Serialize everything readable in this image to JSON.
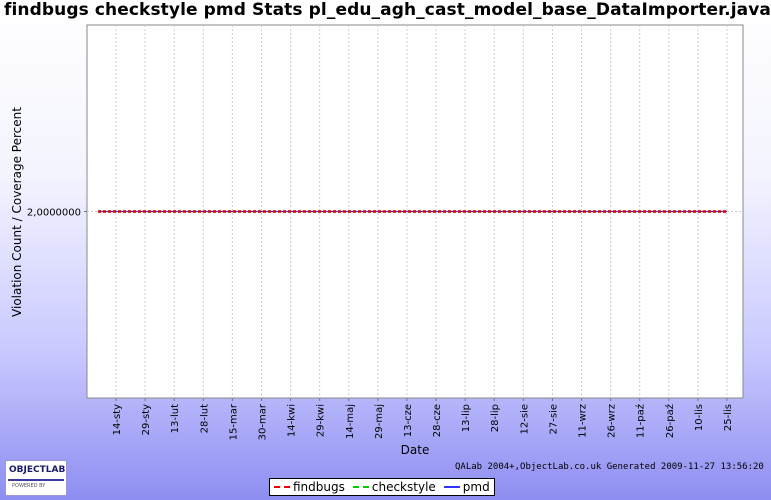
{
  "chart_data": {
    "type": "line",
    "title": "findbugs checkstyle pmd  Stats pl_edu_agh_cast_model_base_DataImporter.java",
    "xlabel": "Date",
    "ylabel": "Violation Count / Coverage Percent",
    "categories": [
      "14-sty",
      "29-sty",
      "13-lut",
      "28-lut",
      "15-mar",
      "30-mar",
      "14-kwi",
      "29-kwi",
      "14-maj",
      "29-maj",
      "13-cze",
      "28-cze",
      "13-lip",
      "28-lip",
      "12-sie",
      "27-sie",
      "11-wrz",
      "26-wrz",
      "11-paź",
      "26-paź",
      "10-lis",
      "25-lis"
    ],
    "y_ticks": [
      "2,0000000"
    ],
    "ylim": [
      1,
      3
    ],
    "grid": true,
    "legend": "bottom",
    "series": [
      {
        "name": "findbugs",
        "color": "#ee0000",
        "style": "dashed",
        "values": [
          2,
          2,
          2,
          2,
          2,
          2,
          2,
          2,
          2,
          2,
          2,
          2,
          2,
          2,
          2,
          2,
          2,
          2,
          2,
          2,
          2,
          2
        ]
      },
      {
        "name": "checkstyle",
        "color": "#00cc00",
        "style": "dashed",
        "values": [
          2,
          2,
          2,
          2,
          2,
          2,
          2,
          2,
          2,
          2,
          2,
          2,
          2,
          2,
          2,
          2,
          2,
          2,
          2,
          2,
          2,
          2
        ]
      },
      {
        "name": "pmd",
        "color": "#3333ff",
        "style": "solid",
        "values": [
          2,
          2,
          2,
          2,
          2,
          2,
          2,
          2,
          2,
          2,
          2,
          2,
          2,
          2,
          2,
          2,
          2,
          2,
          2,
          2,
          2,
          2
        ]
      }
    ]
  },
  "footer": {
    "generated": "QALab 2004+,ObjectLab.co.uk Generated 2009-11-27 13:56:20"
  },
  "logo": {
    "name": "OBJECTLAB",
    "sub": "POWERED BY"
  }
}
